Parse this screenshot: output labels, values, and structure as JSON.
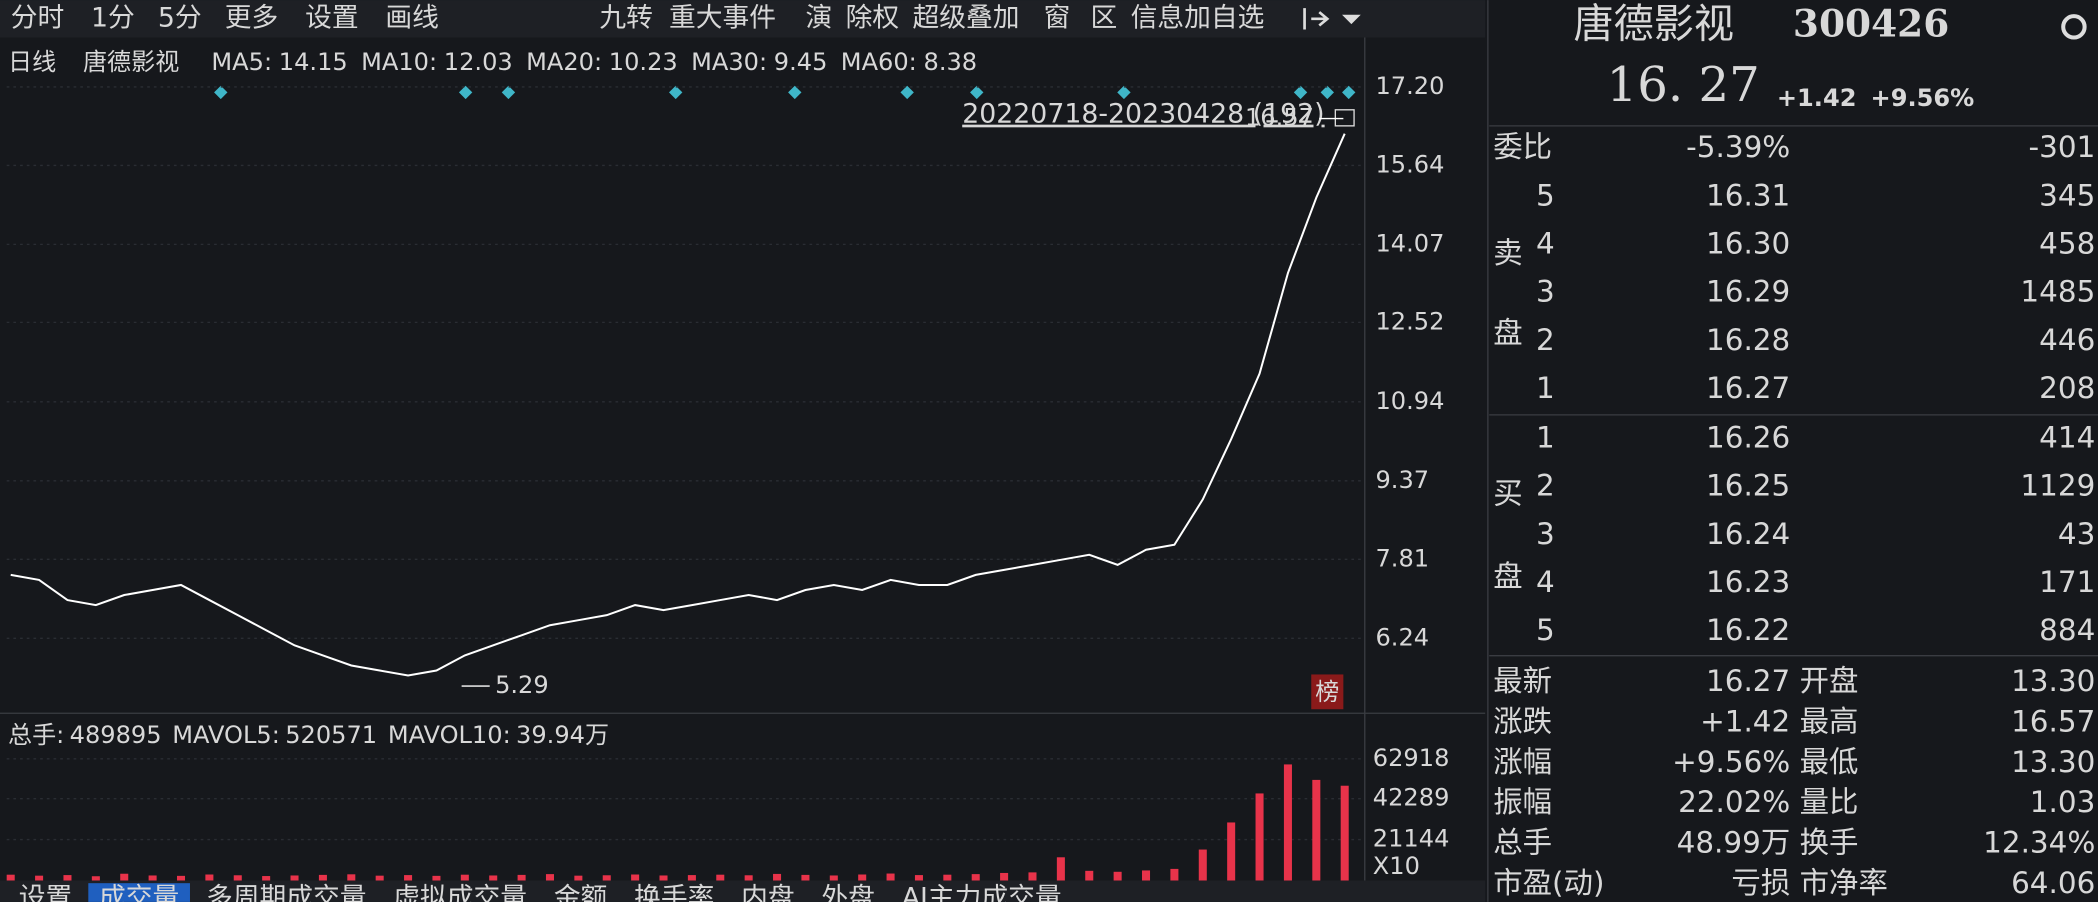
{
  "toolbar": {
    "left": [
      "分时",
      "1分",
      "5分",
      "更多",
      "设置",
      "画线"
    ],
    "right": [
      "九转",
      "重大事件",
      "演",
      "除权",
      "超级叠加",
      "窗",
      "区",
      "信息加自选"
    ]
  },
  "price_chart": {
    "period": "日线",
    "name": "唐德影视",
    "ma": [
      {
        "label": "MA5:",
        "value": 14.15,
        "color": "#e8e8e8"
      },
      {
        "label": "MA10:",
        "value": 12.03,
        "color": "#e3dc6a"
      },
      {
        "label": "MA20:",
        "value": 10.23,
        "color": "#e2407c"
      },
      {
        "label": "MA30:",
        "value": 9.45,
        "color": "#2fc84a"
      },
      {
        "label": "MA60:",
        "value": 8.38,
        "color": "#e8e8e8"
      }
    ],
    "range_label": "20220718-20230428 (192)",
    "high": 16.57,
    "low": 5.29,
    "badge": "榜",
    "ylim": [
      4.83,
      17.33
    ],
    "yticks": [
      {
        "value": 17.2,
        "label": "17.20"
      },
      15.64,
      14.07,
      12.52,
      10.94,
      9.37,
      7.81,
      6.24
    ],
    "close": [
      7.5,
      7.4,
      7.0,
      6.9,
      7.1,
      7.2,
      7.3,
      7.0,
      6.7,
      6.4,
      6.1,
      5.9,
      5.7,
      5.6,
      5.5,
      5.6,
      5.9,
      6.1,
      6.3,
      6.5,
      6.6,
      6.7,
      6.9,
      6.8,
      6.9,
      7.0,
      7.1,
      7.0,
      7.2,
      7.3,
      7.2,
      7.4,
      7.3,
      7.3,
      7.5,
      7.6,
      7.7,
      7.8,
      7.9,
      7.7,
      8.0,
      8.1,
      9.0,
      10.2,
      11.5,
      13.5,
      15.0,
      16.27
    ],
    "color": "#ffffff"
  },
  "volume_chart": {
    "total_label": "总手:",
    "total": 489895,
    "mavol5_label": "MAVOL5:",
    "mavol5": 520571,
    "mavol10_label": "MAVOL10:",
    "mavol10": "39.94万",
    "ylim": [
      0,
      78150
    ],
    "yticks": [
      62918,
      42289,
      21144
    ],
    "unit": "X10",
    "values": [
      3000,
      2500,
      2800,
      2200,
      3500,
      2600,
      2400,
      3100,
      2700,
      2300,
      2600,
      2900,
      3200,
      2500,
      2800,
      2400,
      3000,
      2600,
      2900,
      3300,
      2500,
      2700,
      3100,
      2600,
      2800,
      3000,
      2700,
      3400,
      2900,
      2600,
      3100,
      3600,
      2800,
      3000,
      3300,
      3900,
      4200,
      12000,
      5000,
      4500,
      5200,
      6000,
      16000,
      30000,
      45000,
      60000,
      52000,
      48990
    ],
    "color": "#e8334a"
  },
  "tabs": [
    "设置",
    "成交量",
    "多周期成交量",
    "虚拟成交量",
    "金额",
    "换手率",
    "内盘",
    "外盘",
    "AI主力成交量"
  ],
  "quote": {
    "name": "唐德影视",
    "code": "300426",
    "price": "16. 27",
    "change": "+1.42",
    "pct": "+9.56%",
    "ratio_label": "委比",
    "ratio": "-5.39%",
    "ratio_diff": "-301",
    "sell_label": [
      "卖",
      "盘"
    ],
    "buy_label": [
      "买",
      "盘"
    ],
    "sell": [
      {
        "level": "5",
        "price": "16.31",
        "volume": "345"
      },
      {
        "level": "4",
        "price": "16.30",
        "volume": "458"
      },
      {
        "level": "3",
        "price": "16.29",
        "volume": "1485"
      },
      {
        "level": "2",
        "price": "16.28",
        "volume": "446"
      },
      {
        "level": "1",
        "price": "16.27",
        "volume": "208"
      }
    ],
    "buy": [
      {
        "level": "1",
        "price": "16.26",
        "volume": "414"
      },
      {
        "level": "2",
        "price": "16.25",
        "volume": "1129"
      },
      {
        "level": "3",
        "price": "16.24",
        "volume": "43"
      },
      {
        "level": "4",
        "price": "16.23",
        "volume": "171"
      },
      {
        "level": "5",
        "price": "16.22",
        "volume": "884"
      }
    ],
    "stats": [
      [
        {
          "label": "最新",
          "value": "16.27",
          "c": "r"
        },
        {
          "label": "开盘",
          "value": "13.30",
          "c": "g"
        }
      ],
      [
        {
          "label": "涨跌",
          "value": "+1.42",
          "c": "r"
        },
        {
          "label": "最高",
          "value": "16.57",
          "c": "r"
        }
      ],
      [
        {
          "label": "涨幅",
          "value": "+9.56%",
          "c": "r"
        },
        {
          "label": "最低",
          "value": "13.30",
          "c": "g"
        }
      ],
      [
        {
          "label": "振幅",
          "value": "22.02%",
          "c": "w"
        },
        {
          "label": "量比",
          "value": "1.03",
          "c": "r"
        }
      ],
      [
        {
          "label": "总手",
          "value": "48.99万",
          "c": "w"
        },
        {
          "label": "换手",
          "value": "12.34%",
          "c": "w"
        }
      ],
      [
        {
          "label": "市盈(动)",
          "value": "亏损",
          "c": "w"
        },
        {
          "label": "市净率",
          "value": "64.06",
          "c": "w"
        }
      ]
    ]
  }
}
